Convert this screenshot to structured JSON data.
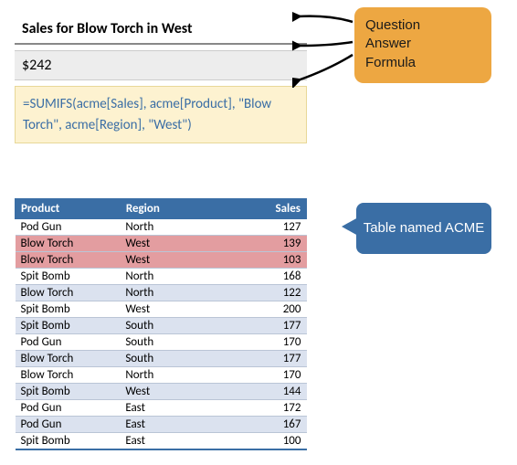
{
  "question": "Sales for Blow Torch in West",
  "answer": "$242",
  "formula": "=SUMIFS(acme[Sales], acme[Product], \"Blow Torch\", acme[Region], \"West\")",
  "callout_labels": {
    "question": "Question",
    "answer": "Answer",
    "formula": "Formula",
    "table": "Table named ACME"
  },
  "table": {
    "columns": [
      "Product",
      "Region",
      "Sales"
    ],
    "rows": [
      {
        "product": "Pod Gun",
        "region": "North",
        "sales": 127,
        "band": "light",
        "hl": false
      },
      {
        "product": "Blow Torch",
        "region": "West",
        "sales": 139,
        "band": "dark",
        "hl": true
      },
      {
        "product": "Blow Torch",
        "region": "West",
        "sales": 103,
        "band": "light",
        "hl": true
      },
      {
        "product": "Spit Bomb",
        "region": "North",
        "sales": 168,
        "band": "light",
        "hl": false
      },
      {
        "product": "Blow Torch",
        "region": "North",
        "sales": 122,
        "band": "dark",
        "hl": false
      },
      {
        "product": "Spit Bomb",
        "region": "West",
        "sales": 200,
        "band": "light",
        "hl": false
      },
      {
        "product": "Spit Bomb",
        "region": "South",
        "sales": 177,
        "band": "dark",
        "hl": false
      },
      {
        "product": "Pod Gun",
        "region": "South",
        "sales": 170,
        "band": "light",
        "hl": false
      },
      {
        "product": "Blow Torch",
        "region": "South",
        "sales": 177,
        "band": "dark",
        "hl": false
      },
      {
        "product": "Blow Torch",
        "region": "North",
        "sales": 170,
        "band": "light",
        "hl": false
      },
      {
        "product": "Spit Bomb",
        "region": "West",
        "sales": 144,
        "band": "dark",
        "hl": false
      },
      {
        "product": "Pod Gun",
        "region": "East",
        "sales": 172,
        "band": "light",
        "hl": false
      },
      {
        "product": "Pod Gun",
        "region": "East",
        "sales": 167,
        "band": "dark",
        "hl": false
      },
      {
        "product": "Spit Bomb",
        "region": "East",
        "sales": 100,
        "band": "light",
        "hl": false
      }
    ]
  },
  "colors": {
    "header_bg": "#3a6ea5",
    "band_light": "#ffffff",
    "band_dark": "#dbe2ef",
    "highlight": "#e39da0",
    "callout_orange": "#eda742",
    "callout_blue": "#3a6ea5",
    "formula_bg": "#fdf2d0",
    "formula_text": "#3a6ea5",
    "answer_bg": "#ededed"
  }
}
